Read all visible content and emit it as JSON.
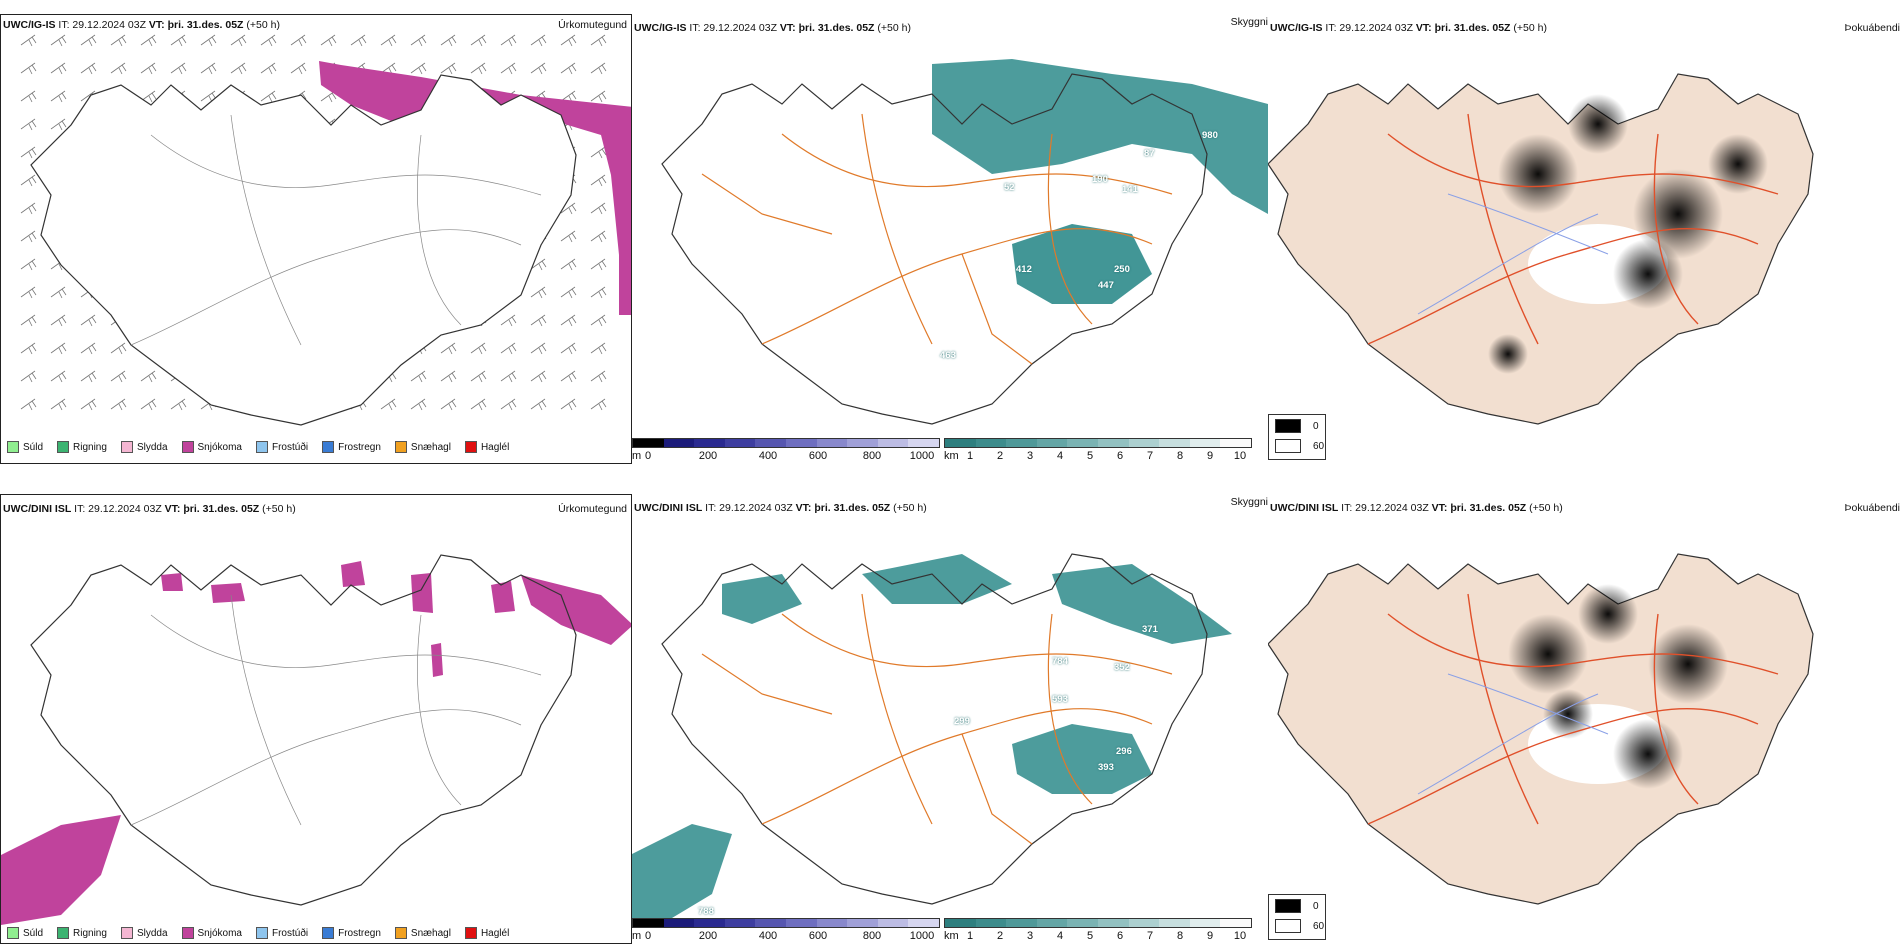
{
  "rows": [
    {
      "model": "UWC/IG-IS",
      "it": "IT: 29.12.2024 03Z",
      "vt_label": "VT:",
      "vt_day": "þri. 31.des. 05Z",
      "lead": "(+50 h)",
      "precip": {
        "title": "Úrkomutegund",
        "legend": [
          {
            "label": "Súld",
            "color": "#90ee90"
          },
          {
            "label": "Rigning",
            "color": "#3cb371"
          },
          {
            "label": "Slydda",
            "color": "#f4b6d2"
          },
          {
            "label": "Snjókoma",
            "color": "#c0439c"
          },
          {
            "label": "Frostúði",
            "color": "#8ec5ee"
          },
          {
            "label": "Frostregn",
            "color": "#3a7cd4"
          },
          {
            "label": "Snæhagl",
            "color": "#f0a020"
          },
          {
            "label": "Haglél",
            "color": "#e01010"
          }
        ]
      },
      "cloud": {
        "title": "Skyggni",
        "labels": [
          "980",
          "87",
          "52",
          "190",
          "141",
          "412",
          "250",
          "447",
          "463"
        ],
        "m_unit": "m",
        "m_ticks": [
          "0",
          "200",
          "400",
          "600",
          "800",
          "1000"
        ],
        "km_unit": "km",
        "km_ticks": [
          "1",
          "2",
          "3",
          "4",
          "5",
          "6",
          "7",
          "8",
          "9",
          "10"
        ]
      },
      "fog": {
        "title": "Þokuábendi",
        "legend": [
          "0",
          "60"
        ]
      }
    },
    {
      "model": "UWC/DINI ISL",
      "it": "IT: 29.12.2024 03Z",
      "vt_label": "VT:",
      "vt_day": "þri. 31.des. 05Z",
      "lead": "(+50 h)",
      "precip": {
        "title": "Úrkomutegund",
        "legend": [
          {
            "label": "Súld",
            "color": "#90ee90"
          },
          {
            "label": "Rigning",
            "color": "#3cb371"
          },
          {
            "label": "Slydda",
            "color": "#f4b6d2"
          },
          {
            "label": "Snjókoma",
            "color": "#c0439c"
          },
          {
            "label": "Frostúði",
            "color": "#8ec5ee"
          },
          {
            "label": "Frostregn",
            "color": "#3a7cd4"
          },
          {
            "label": "Snæhagl",
            "color": "#f0a020"
          },
          {
            "label": "Haglél",
            "color": "#e01010"
          }
        ]
      },
      "cloud": {
        "title": "Skyggni",
        "labels": [
          "371",
          "784",
          "352",
          "593",
          "299",
          "296",
          "393",
          "788"
        ],
        "m_unit": "m",
        "m_ticks": [
          "0",
          "200",
          "400",
          "600",
          "800",
          "1000"
        ],
        "km_unit": "km",
        "km_ticks": [
          "1",
          "2",
          "3",
          "4",
          "5",
          "6",
          "7",
          "8",
          "9",
          "10"
        ]
      },
      "fog": {
        "title": "Þokuábendi",
        "legend": [
          "0",
          "60"
        ]
      }
    }
  ],
  "colors": {
    "snow": "#c0439c",
    "teal": "#2e8b8b",
    "road": "#e07a2a",
    "fog_land": "#f2dfd0",
    "fog_road": "#e0502a",
    "river": "#8aa0e6"
  }
}
